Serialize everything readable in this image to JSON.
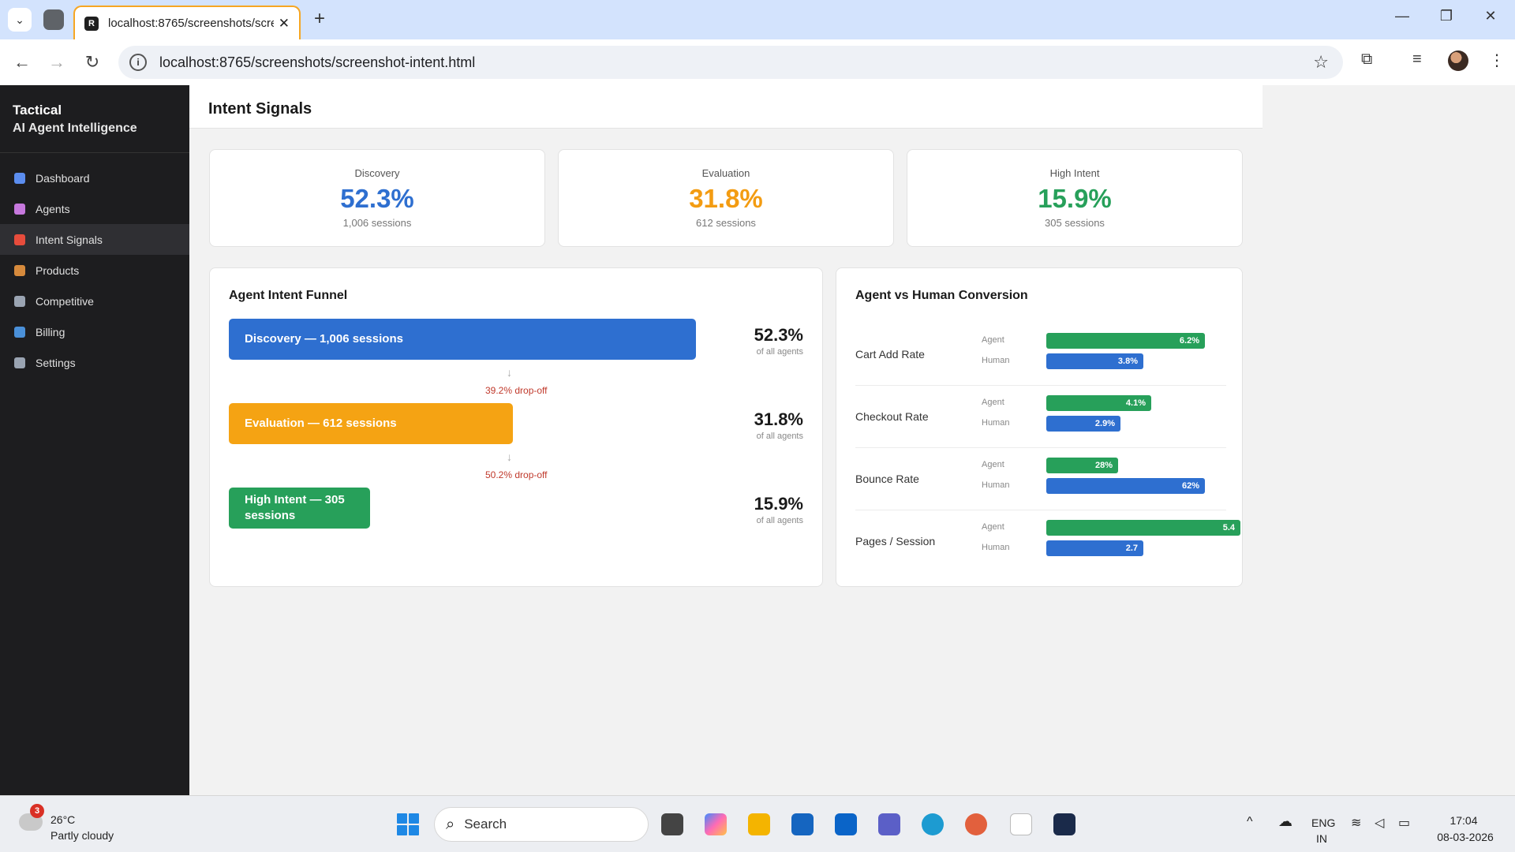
{
  "browser": {
    "tab_title": "localhost:8765/screenshots/scre",
    "tab_favicon": "R",
    "address": "localhost:8765/screenshots/screenshot-intent.html"
  },
  "sidebar": {
    "brand_line1": "Tactical",
    "brand_line2": "AI Agent Intelligence",
    "items": [
      {
        "label": "Dashboard",
        "icon": "bar-chart-icon",
        "color": "#5b8def"
      },
      {
        "label": "Agents",
        "icon": "robot-icon",
        "color": "#c678dd"
      },
      {
        "label": "Intent Signals",
        "icon": "target-icon",
        "color": "#e74c3c",
        "active": true
      },
      {
        "label": "Products",
        "icon": "package-icon",
        "color": "#d68a3c"
      },
      {
        "label": "Competitive",
        "icon": "crossed-swords-icon",
        "color": "#9aa4b2"
      },
      {
        "label": "Billing",
        "icon": "credit-card-icon",
        "color": "#4a90d9"
      },
      {
        "label": "Settings",
        "icon": "gear-icon",
        "color": "#9aa4b2"
      }
    ]
  },
  "page": {
    "title": "Intent Signals"
  },
  "stats": [
    {
      "label": "Discovery",
      "value": "52.3%",
      "sub": "1,006 sessions",
      "color": "#2e6fd0"
    },
    {
      "label": "Evaluation",
      "value": "31.8%",
      "sub": "612 sessions",
      "color": "#f39c12"
    },
    {
      "label": "High Intent",
      "value": "15.9%",
      "sub": "305 sessions",
      "color": "#27a05a"
    }
  ],
  "funnel": {
    "title": "Agent Intent Funnel",
    "stages": [
      {
        "label": "Discovery — 1,006 sessions",
        "value": 1006,
        "pct": "52.3%",
        "pct_sub": "of all agents",
        "color": "#2e6fd0"
      },
      {
        "label": "Evaluation — 612 sessions",
        "value": 612,
        "pct": "31.8%",
        "pct_sub": "of all agents",
        "color": "#f5a313"
      },
      {
        "label": "High Intent — 305 sessions",
        "value": 305,
        "pct": "15.9%",
        "pct_sub": "of all agents",
        "color": "#27a05a"
      }
    ],
    "dropoffs": [
      "39.2% drop-off",
      "50.2% drop-off"
    ]
  },
  "comparison": {
    "title": "Agent vs Human Conversion",
    "agent_label": "Agent",
    "human_label": "Human",
    "agent_color": "#27a05a",
    "human_color": "#2e6fd0",
    "metrics": [
      {
        "name": "Cart Add Rate",
        "agent": "6.2%",
        "human": "3.8%",
        "agent_val": 6.2,
        "human_val": 3.8,
        "max": 7.6
      },
      {
        "name": "Checkout Rate",
        "agent": "4.1%",
        "human": "2.9%",
        "agent_val": 4.1,
        "human_val": 2.9,
        "max": 7.6
      },
      {
        "name": "Bounce Rate",
        "agent": "28%",
        "human": "62%",
        "agent_val": 28,
        "human_val": 62,
        "max": 76
      },
      {
        "name": "Pages / Session",
        "agent": "5.4",
        "human": "2.7",
        "agent_val": 5.4,
        "human_val": 2.7,
        "max": 5.4
      }
    ]
  },
  "taskbar": {
    "weather_temp": "26°C",
    "weather_desc": "Partly cloudy",
    "weather_badge": "3",
    "search_placeholder": "Search",
    "lang_line1": "ENG",
    "lang_line2": "IN",
    "time": "17:04",
    "date": "08-03-2026"
  }
}
